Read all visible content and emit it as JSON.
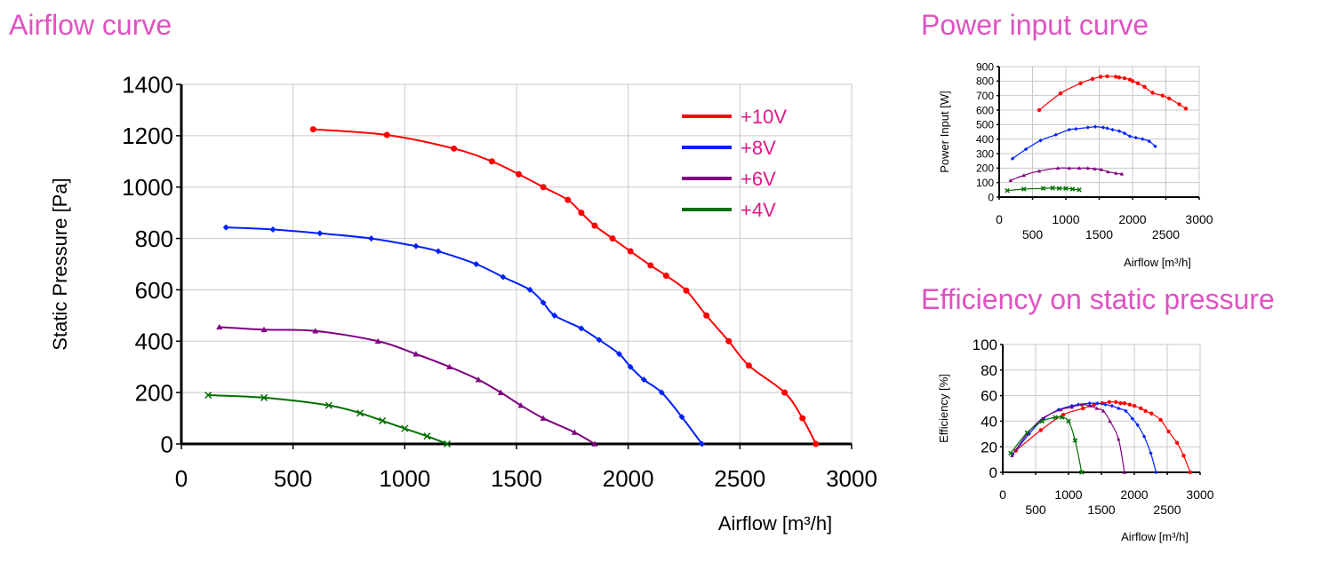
{
  "headings": {
    "airflow": "Airflow curve",
    "power": "Power input curve",
    "efficiency": "Efficiency on static pressure"
  },
  "colors": {
    "title": "#e052c2",
    "legend_text": "#e0188c",
    "series": [
      "#ff0000",
      "#0020ff",
      "#800080",
      "#007000"
    ]
  },
  "chart_data": [
    {
      "id": "airflow",
      "type": "line",
      "xlabel": "Airflow [m³/h]",
      "ylabel": "Static Pressure [Pa]",
      "xlim": [
        0,
        3000
      ],
      "ylim": [
        0,
        1400
      ],
      "xticks": [
        "0",
        "500",
        "1000",
        "1500",
        "2000",
        "2500",
        "3000"
      ],
      "yticks": [
        "0",
        "200",
        "400",
        "600",
        "800",
        "1000",
        "1200",
        "1400"
      ],
      "grid": true,
      "legend": "top-right",
      "series": [
        {
          "name": "+10V",
          "marker": "circle",
          "points": [
            [
              590,
              1225
            ],
            [
              920,
              1203
            ],
            [
              1220,
              1150
            ],
            [
              1390,
              1100
            ],
            [
              1510,
              1050
            ],
            [
              1620,
              1000
            ],
            [
              1730,
              950
            ],
            [
              1790,
              900
            ],
            [
              1850,
              850
            ],
            [
              1930,
              800
            ],
            [
              2010,
              750
            ],
            [
              2100,
              695
            ],
            [
              2170,
              655
            ],
            [
              2260,
              597
            ],
            [
              2350,
              500
            ],
            [
              2450,
              400
            ],
            [
              2540,
              305
            ],
            [
              2700,
              200
            ],
            [
              2780,
              100
            ],
            [
              2840,
              0
            ]
          ]
        },
        {
          "name": "+8V",
          "marker": "diamond",
          "points": [
            [
              200,
              843
            ],
            [
              410,
              835
            ],
            [
              620,
              820
            ],
            [
              850,
              800
            ],
            [
              1050,
              770
            ],
            [
              1150,
              750
            ],
            [
              1320,
              700
            ],
            [
              1440,
              650
            ],
            [
              1560,
              600
            ],
            [
              1620,
              550
            ],
            [
              1670,
              500
            ],
            [
              1790,
              450
            ],
            [
              1870,
              405
            ],
            [
              1960,
              350
            ],
            [
              2010,
              300
            ],
            [
              2070,
              250
            ],
            [
              2150,
              200
            ],
            [
              2240,
              105
            ],
            [
              2330,
              0
            ]
          ]
        },
        {
          "name": "+6V",
          "marker": "triangle",
          "points": [
            [
              170,
              455
            ],
            [
              370,
              445
            ],
            [
              600,
              440
            ],
            [
              880,
              400
            ],
            [
              1050,
              350
            ],
            [
              1200,
              300
            ],
            [
              1330,
              250
            ],
            [
              1430,
              200
            ],
            [
              1520,
              150
            ],
            [
              1620,
              100
            ],
            [
              1760,
              45
            ],
            [
              1850,
              0
            ]
          ]
        },
        {
          "name": "+4V",
          "marker": "x",
          "points": [
            [
              120,
              190
            ],
            [
              370,
              180
            ],
            [
              660,
              150
            ],
            [
              800,
              120
            ],
            [
              900,
              90
            ],
            [
              1000,
              60
            ],
            [
              1100,
              30
            ],
            [
              1190,
              0
            ]
          ]
        }
      ]
    },
    {
      "id": "power",
      "type": "line",
      "xlabel": "Airflow [m³/h]",
      "ylabel": "Power Input [W]",
      "xlim": [
        0,
        3000
      ],
      "ylim": [
        0,
        900
      ],
      "xticks": [
        "0",
        "500",
        "1000",
        "1500",
        "2000",
        "2500",
        "3000"
      ],
      "yticks": [
        "0",
        "100",
        "200",
        "300",
        "400",
        "500",
        "600",
        "700",
        "800",
        "900"
      ],
      "grid": true,
      "series": [
        {
          "name": "+10V",
          "marker": "circle",
          "points": [
            [
              600,
              600
            ],
            [
              920,
              715
            ],
            [
              1220,
              785
            ],
            [
              1400,
              815
            ],
            [
              1520,
              830
            ],
            [
              1620,
              833
            ],
            [
              1750,
              830
            ],
            [
              1800,
              825
            ],
            [
              1880,
              820
            ],
            [
              1960,
              810
            ],
            [
              2000,
              800
            ],
            [
              2080,
              785
            ],
            [
              2180,
              760
            ],
            [
              2300,
              720
            ],
            [
              2450,
              700
            ],
            [
              2550,
              680
            ],
            [
              2700,
              640
            ],
            [
              2800,
              610
            ]
          ]
        },
        {
          "name": "+8V",
          "marker": "diamond",
          "points": [
            [
              200,
              265
            ],
            [
              400,
              330
            ],
            [
              620,
              390
            ],
            [
              850,
              430
            ],
            [
              1050,
              465
            ],
            [
              1150,
              470
            ],
            [
              1330,
              480
            ],
            [
              1440,
              485
            ],
            [
              1560,
              480
            ],
            [
              1620,
              475
            ],
            [
              1700,
              465
            ],
            [
              1800,
              455
            ],
            [
              1880,
              440
            ],
            [
              1960,
              420
            ],
            [
              2050,
              410
            ],
            [
              2150,
              400
            ],
            [
              2250,
              385
            ],
            [
              2340,
              350
            ]
          ]
        },
        {
          "name": "+6V",
          "marker": "triangle",
          "points": [
            [
              170,
              115
            ],
            [
              370,
              150
            ],
            [
              600,
              180
            ],
            [
              880,
              200
            ],
            [
              1050,
              200
            ],
            [
              1200,
              200
            ],
            [
              1330,
              200
            ],
            [
              1430,
              195
            ],
            [
              1530,
              190
            ],
            [
              1630,
              175
            ],
            [
              1750,
              165
            ],
            [
              1840,
              160
            ]
          ]
        },
        {
          "name": "+4V",
          "marker": "x",
          "points": [
            [
              120,
              45
            ],
            [
              370,
              55
            ],
            [
              660,
              60
            ],
            [
              800,
              63
            ],
            [
              900,
              60
            ],
            [
              1000,
              60
            ],
            [
              1100,
              55
            ],
            [
              1200,
              50
            ]
          ]
        }
      ]
    },
    {
      "id": "efficiency",
      "type": "line",
      "xlabel": "Airflow [m³/h]",
      "ylabel": "Efficiency [%]",
      "xlim": [
        0,
        3000
      ],
      "ylim": [
        0,
        100
      ],
      "xticks": [
        "0",
        "500",
        "1000",
        "1500",
        "2000",
        "2500",
        "3000"
      ],
      "yticks": [
        "0",
        "20",
        "40",
        "60",
        "80",
        "100"
      ],
      "grid": true,
      "series": [
        {
          "name": "+10V",
          "marker": "circle",
          "points": [
            [
              200,
              17
            ],
            [
              580,
              33
            ],
            [
              920,
              45
            ],
            [
              1220,
              50
            ],
            [
              1390,
              53
            ],
            [
              1510,
              54
            ],
            [
              1620,
              55
            ],
            [
              1720,
              55
            ],
            [
              1790,
              54
            ],
            [
              1850,
              54
            ],
            [
              1930,
              53
            ],
            [
              2000,
              52
            ],
            [
              2100,
              50
            ],
            [
              2170,
              48
            ],
            [
              2260,
              46
            ],
            [
              2400,
              41
            ],
            [
              2520,
              32
            ],
            [
              2650,
              23
            ],
            [
              2750,
              13
            ],
            [
              2850,
              0
            ]
          ]
        },
        {
          "name": "+8V",
          "marker": "diamond",
          "points": [
            [
              150,
              14
            ],
            [
              400,
              30
            ],
            [
              620,
              42
            ],
            [
              850,
              49
            ],
            [
              1050,
              52
            ],
            [
              1150,
              53
            ],
            [
              1320,
              54
            ],
            [
              1440,
              54
            ],
            [
              1560,
              53
            ],
            [
              1660,
              52
            ],
            [
              1760,
              50
            ],
            [
              1870,
              48
            ],
            [
              1970,
              42
            ],
            [
              2050,
              37
            ],
            [
              2150,
              28
            ],
            [
              2250,
              15
            ],
            [
              2330,
              0
            ]
          ]
        },
        {
          "name": "+6V",
          "marker": "triangle",
          "points": [
            [
              140,
              13
            ],
            [
              370,
              30
            ],
            [
              600,
              42
            ],
            [
              880,
              49
            ],
            [
              1050,
              51
            ],
            [
              1200,
              53
            ],
            [
              1330,
              52
            ],
            [
              1430,
              50
            ],
            [
              1530,
              48
            ],
            [
              1630,
              40
            ],
            [
              1760,
              26
            ],
            [
              1850,
              0
            ]
          ]
        },
        {
          "name": "+4V",
          "marker": "x",
          "points": [
            [
              120,
              15
            ],
            [
              370,
              31
            ],
            [
              600,
              40
            ],
            [
              800,
              43
            ],
            [
              900,
              43
            ],
            [
              1000,
              40
            ],
            [
              1100,
              25
            ],
            [
              1200,
              0
            ]
          ]
        }
      ]
    }
  ]
}
